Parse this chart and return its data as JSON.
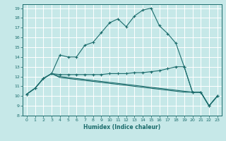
{
  "xlabel": "Humidex (Indice chaleur)",
  "background_color": "#c6e8e8",
  "grid_color": "#ffffff",
  "line_color": "#1a6b6b",
  "xlim": [
    -0.5,
    23.5
  ],
  "ylim": [
    8,
    19.4
  ],
  "xticks": [
    0,
    1,
    2,
    3,
    4,
    5,
    6,
    7,
    8,
    9,
    10,
    11,
    12,
    13,
    14,
    15,
    16,
    17,
    18,
    19,
    20,
    21,
    22,
    23
  ],
  "yticks": [
    8,
    9,
    10,
    11,
    12,
    13,
    14,
    15,
    16,
    17,
    18,
    19
  ],
  "line1_x": [
    0,
    1,
    2,
    3,
    4,
    5,
    6,
    7,
    8,
    9,
    10,
    11,
    12,
    13,
    14,
    15,
    16,
    17,
    18,
    19,
    20,
    21,
    22,
    23
  ],
  "line1_y": [
    10.2,
    10.8,
    11.8,
    12.3,
    14.2,
    14.0,
    14.0,
    15.2,
    15.5,
    16.5,
    17.5,
    17.9,
    17.1,
    18.2,
    18.8,
    19.0,
    17.2,
    16.4,
    15.4,
    13.0,
    10.4,
    10.4,
    9.0,
    10.0
  ],
  "line2_x": [
    0,
    1,
    2,
    3,
    4,
    5,
    6,
    7,
    8,
    9,
    10,
    11,
    12,
    13,
    14,
    15,
    16,
    17,
    18,
    19,
    20,
    21,
    22,
    23
  ],
  "line2_y": [
    10.2,
    10.8,
    11.8,
    12.3,
    12.2,
    12.2,
    12.2,
    12.2,
    12.2,
    12.2,
    12.3,
    12.3,
    12.3,
    12.4,
    12.4,
    12.5,
    12.6,
    12.8,
    13.0,
    13.0,
    10.4,
    10.4,
    9.0,
    10.0
  ],
  "line3_x": [
    0,
    1,
    2,
    3,
    4,
    5,
    6,
    7,
    8,
    9,
    10,
    11,
    12,
    13,
    14,
    15,
    16,
    17,
    18,
    19,
    20,
    21,
    22,
    23
  ],
  "line3_y": [
    10.2,
    10.8,
    11.8,
    12.3,
    12.0,
    11.9,
    11.8,
    11.7,
    11.6,
    11.5,
    11.4,
    11.3,
    11.2,
    11.1,
    11.0,
    10.9,
    10.8,
    10.7,
    10.6,
    10.5,
    10.4,
    10.4,
    9.0,
    10.0
  ],
  "line4_x": [
    0,
    1,
    2,
    3,
    4,
    5,
    6,
    7,
    8,
    9,
    10,
    11,
    12,
    13,
    14,
    15,
    16,
    17,
    18,
    19,
    20,
    21,
    22,
    23
  ],
  "line4_y": [
    10.2,
    10.8,
    11.8,
    12.3,
    11.9,
    11.8,
    11.7,
    11.6,
    11.5,
    11.4,
    11.3,
    11.2,
    11.1,
    11.0,
    10.9,
    10.8,
    10.7,
    10.6,
    10.5,
    10.4,
    10.4,
    10.4,
    9.0,
    10.0
  ]
}
